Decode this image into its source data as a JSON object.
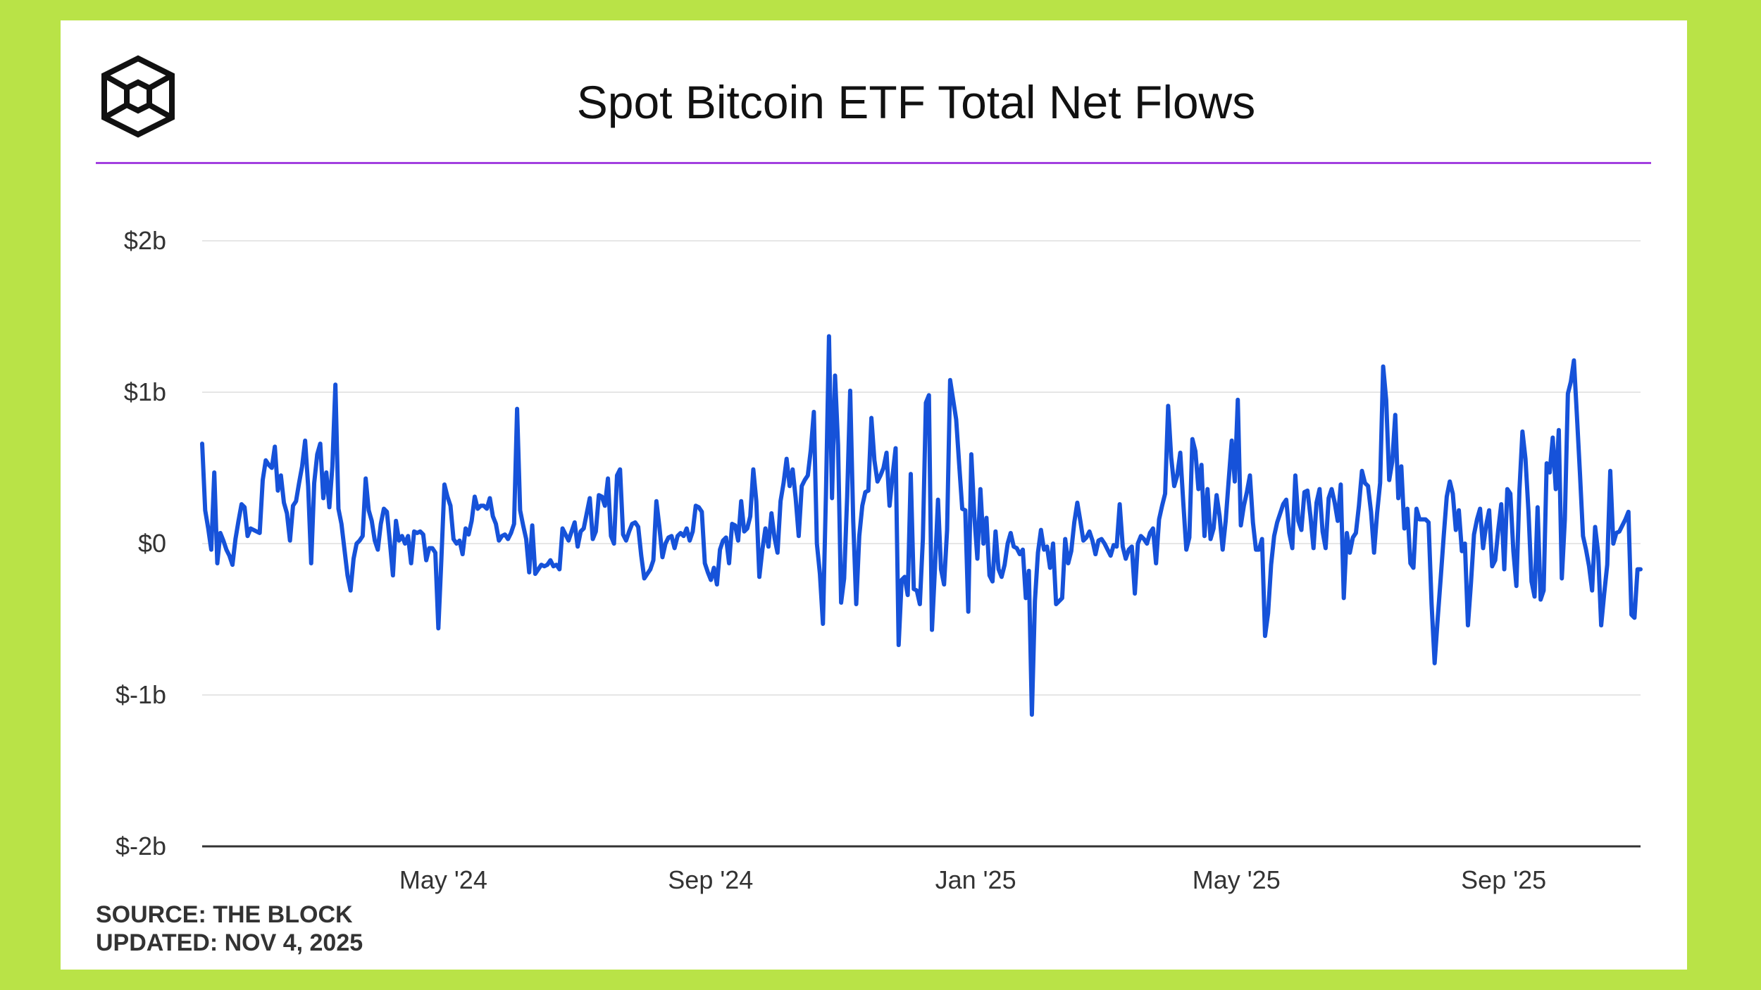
{
  "header": {
    "title": "Spot Bitcoin ETF Total Net Flows",
    "logo_icon": "the-block-cube-icon"
  },
  "colors": {
    "background": "#b9e347",
    "card": "#ffffff",
    "accent_rule": "#a23fe0",
    "line": "#1652d9",
    "grid": "#e6e6e6",
    "axis": "#333333"
  },
  "footer": {
    "source": "SOURCE: THE BLOCK",
    "updated": "UPDATED: NOV 4, 2025"
  },
  "chart_data": {
    "type": "line",
    "title": "Spot Bitcoin ETF Total Net Flows",
    "xlabel": "",
    "ylabel": "",
    "units": "USD billions",
    "ylim": [
      -2,
      2
    ],
    "yticks": [
      2,
      1,
      0,
      -1,
      -2
    ],
    "ytick_labels": [
      "$2b",
      "$1b",
      "$0",
      "$-1b",
      "$-2b"
    ],
    "x_start": "2024-01-11",
    "x_end": "2025-11-03",
    "xtick_dates": [
      "2024-05-01",
      "2024-09-01",
      "2025-01-01",
      "2025-05-01",
      "2025-09-01"
    ],
    "xtick_labels": [
      "May '24",
      "Sep '24",
      "Jan '25",
      "May '25",
      "Sep '25"
    ],
    "grid": true,
    "legend": "none",
    "series": [
      {
        "name": "Total Net Flows",
        "values": [
          0.66,
          0.22,
          0.1,
          -0.04,
          0.47,
          -0.13,
          0.07,
          0.02,
          -0.04,
          -0.08,
          -0.14,
          0.03,
          0.15,
          0.26,
          0.24,
          0.05,
          0.1,
          0.09,
          0.08,
          0.07,
          0.42,
          0.55,
          0.52,
          0.5,
          0.64,
          0.35,
          0.45,
          0.27,
          0.2,
          0.02,
          0.25,
          0.28,
          0.4,
          0.51,
          0.68,
          0.38,
          -0.13,
          0.4,
          0.59,
          0.66,
          0.3,
          0.47,
          0.24,
          0.51,
          1.05,
          0.23,
          0.13,
          -0.04,
          -0.21,
          -0.31,
          -0.1,
          0.0,
          0.02,
          0.05,
          0.43,
          0.22,
          0.15,
          0.02,
          -0.04,
          0.13,
          0.23,
          0.21,
          0.01,
          -0.21,
          0.15,
          0.02,
          0.05,
          0.0,
          0.05,
          -0.13,
          0.08,
          0.07,
          0.08,
          0.06,
          -0.11,
          -0.03,
          -0.03,
          -0.06,
          -0.56,
          -0.1,
          0.39,
          0.31,
          0.25,
          0.03,
          0.0,
          0.02,
          -0.07,
          0.1,
          0.06,
          0.15,
          0.31,
          0.23,
          0.25,
          0.25,
          0.23,
          0.3,
          0.18,
          0.13,
          0.02,
          0.05,
          0.06,
          0.03,
          0.07,
          0.13,
          0.89,
          0.22,
          0.12,
          0.03,
          -0.19,
          0.12,
          -0.2,
          -0.17,
          -0.14,
          -0.15,
          -0.14,
          -0.11,
          -0.15,
          -0.14,
          -0.17,
          0.1,
          0.06,
          0.02,
          0.08,
          0.14,
          -0.02,
          0.08,
          0.1,
          0.2,
          0.3,
          0.03,
          0.08,
          0.32,
          0.31,
          0.25,
          0.43,
          0.05,
          0.0,
          0.45,
          0.49,
          0.06,
          0.02,
          0.08,
          0.13,
          0.14,
          0.11,
          -0.08,
          -0.23,
          -0.2,
          -0.17,
          -0.11,
          0.28,
          0.11,
          -0.09,
          0.0,
          0.04,
          0.05,
          -0.03,
          0.05,
          0.07,
          0.05,
          0.1,
          0.02,
          0.08,
          0.25,
          0.24,
          0.21,
          -0.13,
          -0.19,
          -0.24,
          -0.16,
          -0.27,
          -0.04,
          0.02,
          0.04,
          -0.13,
          0.13,
          0.12,
          0.02,
          0.28,
          0.08,
          0.1,
          0.18,
          0.49,
          0.28,
          -0.22,
          -0.04,
          0.1,
          -0.02,
          0.2,
          0.04,
          -0.06,
          0.28,
          0.4,
          0.56,
          0.38,
          0.49,
          0.3,
          0.05,
          0.38,
          0.42,
          0.45,
          0.62,
          0.87,
          0.0,
          -0.2,
          -0.53,
          0.33,
          1.37,
          0.3,
          1.11,
          0.65,
          -0.39,
          -0.23,
          0.31,
          1.01,
          0.15,
          -0.4,
          0.05,
          0.25,
          0.34,
          0.35,
          0.83,
          0.55,
          0.41,
          0.45,
          0.5,
          0.6,
          0.25,
          0.45,
          0.63,
          -0.67,
          -0.24,
          -0.22,
          -0.34,
          0.46,
          -0.3,
          -0.31,
          -0.4,
          0.03,
          0.93,
          0.98,
          -0.57,
          -0.16,
          0.29,
          -0.17,
          -0.27,
          0.09,
          1.08,
          0.95,
          0.82,
          0.52,
          0.23,
          0.22,
          -0.45,
          0.59,
          0.18,
          -0.1,
          0.36,
          0.0,
          0.17,
          -0.21,
          -0.25,
          0.08,
          -0.17,
          -0.22,
          -0.14,
          0.0,
          0.07,
          -0.02,
          -0.03,
          -0.07,
          -0.04,
          -0.36,
          -0.18,
          -1.13,
          -0.38,
          -0.06,
          0.09,
          -0.04,
          -0.02,
          -0.16,
          0.0,
          -0.4,
          -0.38,
          -0.36,
          0.03,
          -0.13,
          -0.05,
          0.14,
          0.27,
          0.15,
          0.02,
          0.04,
          0.08,
          0.02,
          -0.07,
          0.02,
          0.03,
          0.0,
          -0.04,
          -0.08,
          -0.01,
          -0.02,
          0.26,
          -0.02,
          -0.1,
          -0.04,
          -0.02,
          -0.33,
          0.0,
          0.05,
          0.03,
          0.0,
          0.07,
          0.1,
          -0.13,
          0.16,
          0.25,
          0.33,
          0.91,
          0.57,
          0.38,
          0.45,
          0.6,
          0.27,
          -0.04,
          0.04,
          0.69,
          0.61,
          0.36,
          0.52,
          0.05,
          0.36,
          0.03,
          0.1,
          0.32,
          0.18,
          -0.04,
          0.15,
          0.42,
          0.68,
          0.41,
          0.95,
          0.12,
          0.25,
          0.34,
          0.45,
          0.14,
          -0.04,
          -0.04,
          0.03,
          -0.61,
          -0.46,
          -0.14,
          0.05,
          0.14,
          0.2,
          0.26,
          0.29,
          0.07,
          -0.03,
          0.45,
          0.15,
          0.09,
          0.34,
          0.35,
          0.18,
          -0.03,
          0.27,
          0.36,
          0.08,
          -0.03,
          0.3,
          0.36,
          0.27,
          0.15,
          0.39,
          -0.36,
          0.07,
          -0.06,
          0.04,
          0.07,
          0.25,
          0.48,
          0.4,
          0.38,
          0.21,
          -0.06,
          0.2,
          0.4,
          1.17,
          0.95,
          0.42,
          0.54,
          0.85,
          0.3,
          0.51,
          0.1,
          0.23,
          -0.13,
          -0.16,
          0.23,
          0.16,
          0.16,
          0.16,
          0.14,
          -0.4,
          -0.79,
          -0.5,
          -0.23,
          0.05,
          0.31,
          0.41,
          0.33,
          0.09,
          0.22,
          -0.05,
          0.0,
          -0.54,
          -0.26,
          0.06,
          0.16,
          0.23,
          -0.03,
          0.12,
          0.22,
          -0.15,
          -0.11,
          0.09,
          0.26,
          -0.17,
          0.36,
          0.33,
          -0.05,
          -0.28,
          0.35,
          0.74,
          0.56,
          0.21,
          -0.25,
          -0.35,
          0.24,
          -0.37,
          -0.31,
          0.53,
          0.47,
          0.7,
          0.36,
          0.75,
          -0.23,
          0.16,
          0.99,
          1.07,
          1.21,
          0.84,
          0.46,
          0.05,
          -0.04,
          -0.15,
          -0.31,
          0.11,
          -0.06,
          -0.54,
          -0.33,
          -0.14,
          0.48,
          0.0,
          0.07,
          0.08,
          0.12,
          0.16,
          0.21,
          -0.47,
          -0.49,
          -0.17,
          -0.17
        ]
      }
    ]
  }
}
